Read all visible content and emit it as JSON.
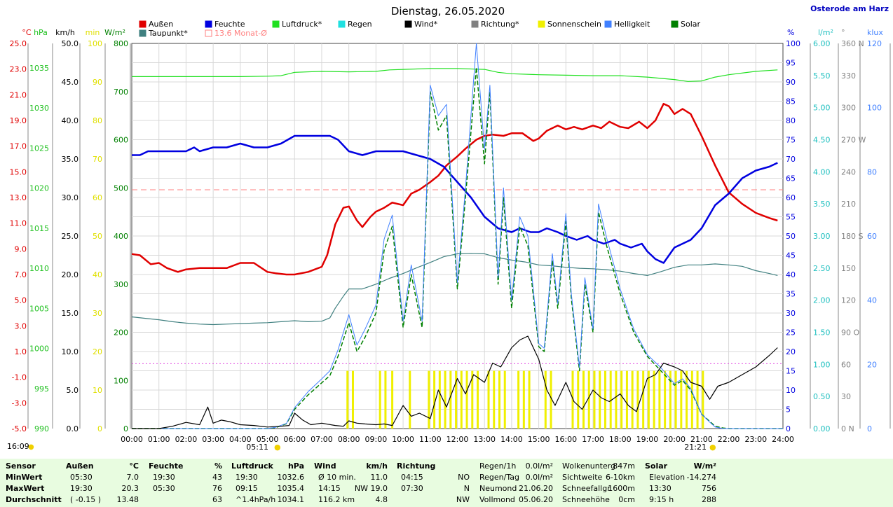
{
  "header": {
    "title": "Dienstag, 26.05.2020",
    "location": "Osterode am Harz"
  },
  "legend": [
    {
      "name": "Außen",
      "color": "#e00000"
    },
    {
      "name": "Feuchte",
      "color": "#0000e0"
    },
    {
      "name": "Luftdruck*",
      "color": "#20e020"
    },
    {
      "name": "Regen",
      "color": "#20e0e0"
    },
    {
      "name": "Wind*",
      "color": "#000000"
    },
    {
      "name": "Richtung*",
      "color": "#808080"
    },
    {
      "name": "Sonnenschein",
      "color": "#f0f000"
    },
    {
      "name": "Helligkeit",
      "color": "#4080ff"
    },
    {
      "name": "Solar",
      "color": "#008000"
    },
    {
      "name": "Taupunkt*",
      "color": "#408080"
    },
    {
      "name": "13.6 Monat-Ø",
      "color": "#ff8080"
    }
  ],
  "chart_data": {
    "type": "line",
    "x_ticks": [
      "00:00",
      "01:00",
      "02:00",
      "03:00",
      "04:00",
      "05:00",
      "06:00",
      "07:00",
      "08:00",
      "09:00",
      "10:00",
      "11:00",
      "12:00",
      "13:00",
      "14:00",
      "15:00",
      "16:00",
      "17:00",
      "18:00",
      "19:00",
      "20:00",
      "21:00",
      "22:00",
      "23:00",
      "24:00"
    ],
    "axes": [
      {
        "unit": "°C",
        "color": "#e00000",
        "min": -5,
        "max": 25,
        "ticks": [
          "25.0",
          "23.0",
          "21.0",
          "19.0",
          "17.0",
          "15.0",
          "13.0",
          "11.0",
          "9.0",
          "7.0",
          "5.0",
          "3.0",
          "1.0",
          "-1.0",
          "-3.0",
          "-5.0"
        ]
      },
      {
        "unit": "hPa",
        "color": "#20c020",
        "ticks": [
          "1035",
          "1030",
          "1025",
          "1020",
          "1015",
          "1010",
          "1005",
          "1000",
          "995",
          "990"
        ]
      },
      {
        "unit": "km/h",
        "color": "#000000",
        "min": 0,
        "max": 50,
        "ticks": [
          "50.0",
          "45.0",
          "40.0",
          "35.0",
          "30.0",
          "25.0",
          "20.0",
          "15.0",
          "10.0",
          "5.0",
          "0.0"
        ]
      },
      {
        "unit": "min",
        "color": "#e0e000",
        "min": 0,
        "max": 100,
        "ticks": [
          "100",
          "90",
          "80",
          "70",
          "60",
          "50",
          "40",
          "30",
          "20",
          "10",
          "0"
        ]
      },
      {
        "unit": "W/m²",
        "color": "#008000",
        "min": 0,
        "max": 800,
        "ticks": [
          "800",
          "700",
          "600",
          "500",
          "400",
          "300",
          "200",
          "100",
          "0"
        ]
      },
      {
        "unit": "%",
        "color": "#0000e0",
        "min": 0,
        "max": 100,
        "ticks": [
          "100",
          "95",
          "90",
          "85",
          "80",
          "75",
          "70",
          "65",
          "60",
          "55",
          "50",
          "45",
          "40",
          "35",
          "30",
          "25",
          "20",
          "15",
          "10",
          "5",
          "0"
        ]
      },
      {
        "unit": "l/m²",
        "color": "#20c0c0",
        "min": 0,
        "max": 6,
        "ticks": [
          "6.00",
          "5.50",
          "5.00",
          "4.50",
          "4.00",
          "3.50",
          "3.00",
          "2.50",
          "2.00",
          "1.50",
          "1.00",
          "0.50",
          "0.00"
        ]
      },
      {
        "unit": "°",
        "color": "#808080",
        "min": 0,
        "max": 360,
        "ticks": [
          "360 N",
          "330",
          "300",
          "270 W",
          "240",
          "210",
          "180 S",
          "150",
          "120",
          "90 O",
          "60",
          "30",
          "0 N"
        ]
      },
      {
        "unit": "klux",
        "color": "#4080ff",
        "min": 0,
        "max": 120,
        "ticks": [
          "120",
          "100",
          "80",
          "60",
          "40",
          "20",
          "0"
        ]
      }
    ],
    "series": [
      {
        "name": "Außen",
        "color": "#e00000",
        "axis": "°C",
        "x": [
          0,
          0.3,
          0.7,
          1,
          1.3,
          1.7,
          2,
          2.5,
          3,
          3.5,
          4,
          4.5,
          5,
          5.3,
          5.7,
          6,
          6.5,
          7,
          7.2,
          7.5,
          7.8,
          8,
          8.3,
          8.5,
          8.8,
          9,
          9.3,
          9.6,
          10,
          10.3,
          10.6,
          11,
          11.3,
          11.6,
          12,
          12.3,
          12.7,
          13,
          13.3,
          13.7,
          14,
          14.4,
          14.8,
          15,
          15.3,
          15.7,
          16,
          16.3,
          16.6,
          17,
          17.3,
          17.6,
          18,
          18.3,
          18.7,
          19,
          19.3,
          19.6,
          19.8,
          20,
          20.3,
          20.6,
          21,
          21.5,
          22,
          22.5,
          23,
          23.5,
          23.8
        ],
        "y": [
          8.6,
          8.5,
          7.8,
          7.9,
          7.5,
          7.2,
          7.4,
          7.5,
          7.5,
          7.5,
          7.9,
          7.9,
          7.2,
          7.1,
          7.0,
          7.0,
          7.2,
          7.6,
          8.5,
          10.9,
          12.2,
          12.3,
          11.2,
          10.7,
          11.5,
          11.9,
          12.2,
          12.6,
          12.4,
          13.3,
          13.6,
          14.2,
          14.7,
          15.5,
          16.2,
          16.8,
          17.5,
          17.8,
          17.9,
          17.8,
          18.0,
          18.0,
          17.4,
          17.6,
          18.2,
          18.6,
          18.3,
          18.5,
          18.3,
          18.6,
          18.4,
          18.9,
          18.5,
          18.4,
          18.9,
          18.4,
          19.0,
          20.3,
          20.1,
          19.5,
          19.9,
          19.5,
          17.8,
          15.5,
          13.4,
          12.5,
          11.8,
          11.4,
          11.2
        ]
      },
      {
        "name": "Feuchte",
        "color": "#0000e0",
        "axis": "%",
        "x": [
          0,
          0.3,
          0.6,
          1,
          1.5,
          2,
          2.3,
          2.5,
          3,
          3.5,
          4,
          4.5,
          5,
          5.5,
          6,
          6.5,
          7,
          7.3,
          7.6,
          8,
          8.5,
          9,
          9.5,
          10,
          10.5,
          11,
          11.5,
          12,
          12.5,
          13,
          13.5,
          14,
          14.3,
          14.7,
          15,
          15.3,
          15.7,
          16,
          16.4,
          16.8,
          17,
          17.4,
          17.8,
          18,
          18.4,
          18.8,
          19,
          19.3,
          19.6,
          20,
          20.3,
          20.6,
          21,
          21.5,
          22,
          22.5,
          23,
          23.5,
          23.8
        ],
        "y": [
          71,
          71,
          72,
          72,
          72,
          72,
          73,
          72,
          73,
          73,
          74,
          73,
          73,
          74,
          76,
          76,
          76,
          76,
          75,
          72,
          71,
          72,
          72,
          72,
          71,
          70,
          68,
          64,
          60,
          55,
          52,
          51,
          52,
          51,
          51,
          52,
          51,
          50,
          49,
          50,
          49,
          48,
          49,
          48,
          47,
          48,
          46,
          44,
          43,
          47,
          48,
          49,
          52,
          58,
          61,
          65,
          67,
          68,
          69
        ]
      },
      {
        "name": "Luftdruck*",
        "color": "#20e020",
        "axis": "W/m²",
        "x": [
          0,
          1,
          2,
          3,
          4,
          5,
          5.5,
          6,
          7,
          8,
          9,
          9.5,
          10,
          11,
          12,
          13,
          13.5,
          14,
          15,
          16,
          17,
          18,
          19,
          20,
          20.5,
          21,
          21.5,
          22,
          23,
          23.8
        ],
        "y": [
          731,
          731,
          731,
          731,
          731,
          732,
          733,
          740,
          742,
          741,
          742,
          745,
          746,
          748,
          748,
          746,
          740,
          737,
          735,
          734,
          733,
          733,
          730,
          725,
          721,
          722,
          730,
          735,
          742,
          745
        ]
      },
      {
        "name": "Taupunkt*",
        "color": "#408080",
        "axis": "W/m²",
        "x": [
          0,
          0.5,
          1,
          1.5,
          2,
          2.5,
          3,
          3.5,
          4,
          4.5,
          5,
          5.5,
          6,
          6.5,
          7,
          7.3,
          7.5,
          7.8,
          8,
          8.5,
          9,
          9.5,
          10,
          10.5,
          11,
          11.5,
          12,
          12.5,
          13,
          13.5,
          14,
          14.5,
          15,
          15.5,
          16,
          16.5,
          17,
          17.5,
          18,
          18.5,
          19,
          19.5,
          20,
          20.5,
          21,
          21.5,
          22,
          22.5,
          23,
          23.5,
          23.8
        ],
        "y": [
          232,
          229,
          226,
          222,
          219,
          217,
          216,
          217,
          218,
          219,
          220,
          222,
          224,
          222,
          223,
          230,
          250,
          275,
          290,
          290,
          300,
          312,
          322,
          334,
          345,
          357,
          363,
          364,
          363,
          355,
          350,
          346,
          340,
          338,
          335,
          333,
          332,
          330,
          327,
          322,
          318,
          326,
          335,
          340,
          340,
          342,
          340,
          337,
          328,
          322,
          318
        ]
      },
      {
        "name": "Solar",
        "color": "#008000",
        "axis": "W/m²",
        "x": [
          0,
          5,
          5.3,
          5.7,
          6,
          6.5,
          7,
          7.3,
          7.6,
          8,
          8.3,
          8.6,
          9,
          9.3,
          9.6,
          10,
          10.3,
          10.7,
          11,
          11.3,
          11.6,
          12,
          12.3,
          12.7,
          13,
          13.2,
          13.5,
          13.7,
          14,
          14.3,
          14.6,
          15,
          15.2,
          15.5,
          15.7,
          16,
          16.2,
          16.5,
          16.7,
          17,
          17.2,
          17.5,
          17.8,
          18,
          18.5,
          19,
          19.5,
          20,
          20.3,
          20.6,
          21,
          21.3,
          21.5,
          21.8,
          22,
          23,
          24
        ],
        "y": [
          0,
          0,
          2,
          10,
          40,
          70,
          95,
          110,
          150,
          220,
          160,
          190,
          240,
          370,
          420,
          210,
          320,
          210,
          700,
          620,
          650,
          290,
          480,
          750,
          550,
          700,
          300,
          480,
          250,
          420,
          380,
          170,
          160,
          350,
          250,
          430,
          270,
          120,
          300,
          200,
          450,
          380,
          320,
          280,
          200,
          150,
          120,
          90,
          100,
          80,
          30,
          15,
          5,
          1,
          0,
          0,
          0
        ]
      },
      {
        "name": "Helligkeit",
        "color": "#4080ff",
        "axis": "klux",
        "x": [
          0,
          5,
          5.3,
          5.7,
          6,
          6.5,
          7,
          7.3,
          7.6,
          8,
          8.3,
          8.6,
          9,
          9.3,
          9.6,
          10,
          10.3,
          10.7,
          11,
          11.3,
          11.6,
          12,
          12.3,
          12.7,
          13,
          13.2,
          13.5,
          13.7,
          14,
          14.3,
          14.6,
          15,
          15.2,
          15.5,
          15.7,
          16,
          16.2,
          16.5,
          16.7,
          17,
          17.2,
          17.5,
          17.8,
          18,
          18.5,
          19,
          19.5,
          20,
          20.3,
          20.6,
          21,
          21.3,
          21.5,
          21.8,
          22,
          23,
          24
        ],
        "y": [
          0,
          0,
          0.4,
          1.6,
          6.5,
          11.5,
          15.5,
          18,
          24.5,
          35.5,
          26,
          31,
          38.5,
          59,
          66.5,
          33.5,
          51,
          33.5,
          107,
          97.5,
          101,
          45.5,
          75,
          120,
          87,
          107,
          47,
          75,
          40,
          66,
          60,
          26.5,
          25,
          54.5,
          39,
          67,
          42,
          19,
          47,
          31,
          70,
          59.5,
          50,
          43.5,
          31,
          23,
          19,
          14,
          15.5,
          12.5,
          4.5,
          2,
          0.5,
          0,
          0,
          0,
          0
        ]
      },
      {
        "name": "Wind*",
        "color": "#000000",
        "axis": "km/h",
        "x": [
          0,
          1,
          1.5,
          2,
          2.5,
          2.8,
          3,
          3.3,
          3.6,
          4,
          4.5,
          5,
          5.5,
          5.8,
          6,
          6.3,
          6.6,
          7,
          7.5,
          7.8,
          8,
          8.3,
          8.6,
          9,
          9.3,
          9.6,
          10,
          10.3,
          10.6,
          11,
          11.3,
          11.6,
          12,
          12.3,
          12.6,
          13,
          13.3,
          13.6,
          14,
          14.3,
          14.6,
          15,
          15.3,
          15.6,
          16,
          16.3,
          16.6,
          17,
          17.3,
          17.6,
          18,
          18.3,
          18.6,
          19,
          19.3,
          19.6,
          20,
          20.3,
          20.6,
          21,
          21.3,
          21.6,
          22,
          22.5,
          23,
          23.5,
          23.8
        ],
        "y": [
          0,
          0,
          0.3,
          0.8,
          0.5,
          2.8,
          0.7,
          1.1,
          0.9,
          0.5,
          0.4,
          0.2,
          0.3,
          0.4,
          2,
          1.1,
          0.5,
          0.7,
          0.4,
          0.3,
          1,
          0.7,
          0.6,
          0.5,
          0.6,
          0.4,
          3,
          1.6,
          2,
          1.3,
          5,
          2.8,
          6.5,
          4.5,
          7,
          6,
          8.5,
          8,
          10.5,
          11.5,
          12,
          9,
          5,
          3,
          6,
          3.5,
          2.5,
          5,
          4,
          3.5,
          4.5,
          3,
          2.2,
          6.5,
          7,
          8.5,
          8,
          7.5,
          6,
          5.5,
          3.8,
          5.5,
          6,
          7,
          8,
          9.5,
          10.5
        ]
      }
    ],
    "sunshine_bars_hours": [
      7.95,
      8.15,
      9.15,
      9.35,
      9.6,
      10.25,
      10.95,
      11.15,
      11.35,
      11.55,
      11.75,
      11.95,
      12.15,
      12.35,
      12.55,
      12.75,
      13.15,
      13.35,
      13.55,
      13.75,
      14.25,
      14.45,
      14.65,
      15.25,
      15.45,
      16.25,
      16.45,
      16.65,
      16.85,
      17.05,
      17.25,
      17.45,
      17.65,
      17.85,
      18.05,
      18.25,
      18.45,
      18.65,
      18.85,
      19.05,
      19.25,
      19.45,
      19.65,
      19.85,
      20.05,
      20.25,
      20.45,
      20.65,
      20.85,
      21.05
    ],
    "monthly_avg_temp": 13.6,
    "reference_line_wm2": 135,
    "sunrise": "05:11",
    "sunset": "21:21",
    "current_time": "16:09"
  },
  "summary": {
    "headers": [
      {
        "label": "Sensor"
      },
      {
        "label": "Außen",
        "unit": "°C"
      },
      {
        "label": "Feuchte",
        "unit": "%"
      },
      {
        "label": "Luftdruck",
        "unit": "hPa"
      },
      {
        "label": "Wind",
        "unit": "km/h"
      },
      {
        "label": "Richtung"
      }
    ],
    "row_labels": [
      "MinWert",
      "MaxWert",
      "Durchschnitt"
    ],
    "aussen": [
      [
        "05:30",
        "7.0"
      ],
      [
        "19:30",
        "20.3"
      ],
      [
        "( -0.15 )",
        "13.48"
      ]
    ],
    "feuchte": [
      [
        "19:30",
        "43"
      ],
      [
        "05:30",
        "76"
      ],
      [
        "",
        "63"
      ]
    ],
    "luftdruck": [
      [
        "19:30",
        "1032.6"
      ],
      [
        "09:15",
        "1035.4"
      ],
      [
        "^1.4hPa/h",
        "1034.1"
      ]
    ],
    "wind": [
      [
        "Ø 10 min.",
        "11.0"
      ],
      [
        "14:15",
        "NW 19.0"
      ],
      [
        "116.2 km",
        "4.8"
      ]
    ],
    "richtung": [
      [
        "04:15",
        "NO"
      ],
      [
        "07:30",
        "N"
      ],
      [
        "",
        "NW"
      ]
    ],
    "rain": [
      [
        "Regen/1h",
        "0.0l/m²"
      ],
      [
        "Regen/Tag",
        "0.0l/m²"
      ],
      [
        "Neumond",
        "21.06.20"
      ],
      [
        "Vollmond",
        "05.06.20"
      ]
    ],
    "cloud": [
      [
        "Wolkenunterg",
        "847m"
      ],
      [
        "Sichtweite",
        "6-10km"
      ],
      [
        "Schneefallgr",
        "1600m"
      ],
      [
        "Schneehöhe",
        "0cm"
      ]
    ],
    "solar": {
      "label": "Solar",
      "unit": "W/m²",
      "rows": [
        [
          "Elevation",
          "-14.274"
        ],
        [
          "13:30",
          "756"
        ],
        [
          "9:15 h",
          "288"
        ]
      ]
    }
  }
}
